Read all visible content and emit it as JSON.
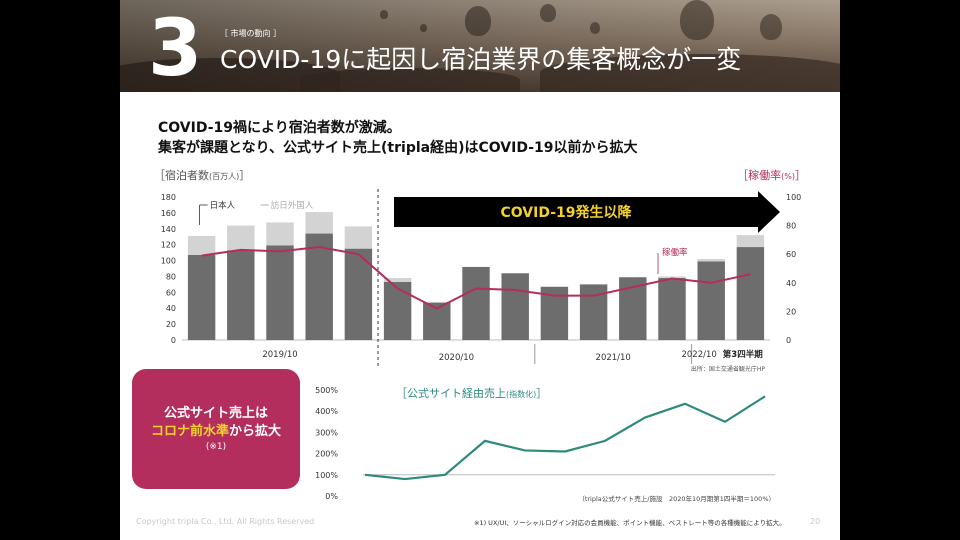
{
  "header": {
    "section_number": "3",
    "section_tag": "［ 市場の動向 ］",
    "title": "COVID-19に起因し宿泊業界の集客概念が一変"
  },
  "lead": {
    "line1": "COVID-19禍により宿泊者数が激減。",
    "line2": "集客が課題となり、公式サイト売上(tripla経由)はCOVID-19以前から拡大"
  },
  "chart_data": [
    {
      "type": "bar",
      "title_left": "［宿泊者数",
      "title_left_unit": "(百万人)",
      "title_left_close": "］",
      "title_right": "［稼働率",
      "title_right_unit": "(%)",
      "title_right_close": "］",
      "ylim": [
        0,
        180
      ],
      "y_ticks": [
        0,
        20,
        40,
        60,
        80,
        100,
        120,
        140,
        160,
        180
      ],
      "y2lim": [
        0,
        100
      ],
      "y2_ticks": [
        0,
        20,
        40,
        60,
        80,
        100
      ],
      "series": [
        {
          "name": "日本人",
          "values": [
            107,
            113,
            119,
            134,
            115,
            73,
            47,
            92,
            84,
            67,
            70,
            79,
            78,
            99,
            117
          ]
        },
        {
          "name": "訪日外国人",
          "values": [
            24,
            31,
            29,
            27,
            28,
            5,
            1,
            0,
            0,
            0,
            0,
            0,
            2,
            3,
            15
          ]
        }
      ],
      "occupancy": {
        "name": "稼働率",
        "values": [
          59,
          63,
          62,
          65,
          60,
          36,
          22,
          36,
          35,
          31,
          31,
          37,
          43,
          40,
          46
        ]
      },
      "x_group_labels": [
        "2019/10",
        "2020/10",
        "2021/10",
        "2022/10",
        "第3四半期"
      ],
      "legend_japanese": "日本人",
      "legend_foreign": "訪日外国人",
      "label_occupancy": "稼働率",
      "covid_label": "COVID-19発生以降",
      "source": "出所：国土交通省観光庁HP"
    },
    {
      "type": "line",
      "title": "［公式サイト経由売上",
      "title_unit": "(指数化)",
      "title_close": "］",
      "ylim": [
        0,
        500
      ],
      "y_ticks": [
        "0%",
        "100%",
        "200%",
        "300%",
        "400%",
        "500%"
      ],
      "y_values": [
        100,
        80,
        100,
        260,
        215,
        210,
        260,
        370,
        435,
        350,
        470
      ],
      "note": "（tripla公式サイト売上/施設　2020年10月期第1四半期＝100%）"
    }
  ],
  "callout": {
    "line1": "公式サイト売上は",
    "line2_highlight": "コロナ前水準",
    "line2_rest": "から拡大",
    "line3": "(※1)"
  },
  "footer": {
    "copyright": "Copyright tripla Co., Ltd. All Rights Reserved",
    "footnote": "※1) UX/UI、ソーシャルログイン対応の会員機能、ポイント機能、ベストレート等の各種機能により拡大。",
    "page_number": "20"
  },
  "colors": {
    "bar_japanese": "#6d6d6d",
    "bar_foreign": "#d3d3d3",
    "occupancy_line": "#b32e5c",
    "sales_line": "#2f8a7e",
    "covid_arrow": "#000000",
    "covid_text": "#f2d12b"
  }
}
